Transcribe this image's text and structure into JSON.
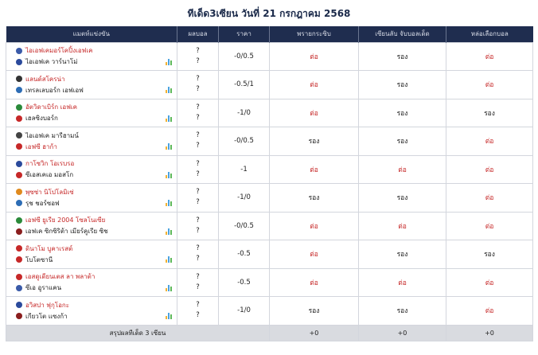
{
  "page_title": "ทีเด็ด3เซียน วันที่ 21 กรกฎาคม 2568",
  "columns": [
    "แมตท์แข่งขัน",
    "ผลบอล",
    "ราคา",
    "พรายกระซิบ",
    "เซียนลับ จับบอลเด็ด",
    "หล่อเลือกบอล"
  ],
  "colors": {
    "header_bg": "#1f2d4f",
    "pick_red": "#c62828",
    "summary_bg": "#d9dbe0"
  },
  "matches": [
    {
      "home": "ไอเอฟเคมอร์โคปิ้งเอฟเค",
      "away": "ไอเอฟเค วาร์นาโม่",
      "home_fav": true,
      "score_home": "?",
      "score_away": "?",
      "price": "-0/0.5",
      "p1": "ต่อ",
      "p2": "รอง",
      "p3": "ต่อ",
      "home_logo": "#3a5aa8",
      "away_logo": "#2b4a9c"
    },
    {
      "home": "แลนด์สโครน่า",
      "away": "เทรลเลบอร์ก เอฟเอฟ",
      "home_fav": true,
      "score_home": "?",
      "score_away": "?",
      "price": "-0.5/1",
      "p1": "ต่อ",
      "p2": "รอง",
      "p3": "ต่อ",
      "home_logo": "#333333",
      "away_logo": "#2d6db5"
    },
    {
      "home": "อัตวิดาเบิร์ก เอฟเค",
      "away": "เฮลซิงบอร์ก",
      "home_fav": true,
      "score_home": "?",
      "score_away": "?",
      "price": "-1/0",
      "p1": "ต่อ",
      "p2": "รอง",
      "p3": "รอง",
      "home_logo": "#2a8a3a",
      "away_logo": "#c62828"
    },
    {
      "home": "ไอเอฟเค มารีฮามน์",
      "away": "เอฟซี ฮาก้า",
      "home_fav": false,
      "score_home": "?",
      "score_away": "?",
      "price": "-0/0.5",
      "p1": "รอง",
      "p2": "รอง",
      "p3": "ต่อ",
      "home_logo": "#444444",
      "away_logo": "#c62828"
    },
    {
      "home": "กาโซวิก โอเรบรอ",
      "away": "ซีเอสเคเอ มอสโก",
      "home_fav": true,
      "score_home": "?",
      "score_away": "?",
      "price": "-1",
      "p1": "ต่อ",
      "p2": "ต่อ",
      "p3": "ต่อ",
      "home_logo": "#2b4a9c",
      "away_logo": "#c62828"
    },
    {
      "home": "พุซซ่า นิโปโลมิเซ่",
      "away": "รุช ชอร์ซอฟ",
      "home_fav": true,
      "score_home": "?",
      "score_away": "?",
      "price": "-1/0",
      "p1": "รอง",
      "p2": "รอง",
      "p3": "ต่อ",
      "home_logo": "#e08a1e",
      "away_logo": "#2d6db5"
    },
    {
      "home": "เอฟซี ยูเรีย 2004 โซลโนเซีย",
      "away": "เอฟเค ซิกซิริต้า เมียร์คูเรีย ซิช",
      "home_fav": true,
      "score_home": "?",
      "score_away": "?",
      "price": "-0/0.5",
      "p1": "ต่อ",
      "p2": "ต่อ",
      "p3": "ต่อ",
      "home_logo": "#2a8a3a",
      "away_logo": "#8a1e1e"
    },
    {
      "home": "ดินาโม บูคาเรสต์",
      "away": "โบโตซานี",
      "home_fav": true,
      "score_home": "?",
      "score_away": "?",
      "price": "-0.5",
      "p1": "ต่อ",
      "p2": "รอง",
      "p3": "รอง",
      "home_logo": "#c62828",
      "away_logo": "#c62828"
    },
    {
      "home": "เอสดูเดียนเตส ลา พลาต้า",
      "away": "ซีเอ อูราแคน",
      "home_fav": true,
      "score_home": "?",
      "score_away": "?",
      "price": "-0.5",
      "p1": "ต่อ",
      "p2": "ต่อ",
      "p3": "ต่อ",
      "home_logo": "#c62828",
      "away_logo": "#3a5aa8"
    },
    {
      "home": "อวิสปา ฟุกุโอกะ",
      "away": "เกียวโต แซงก้า",
      "home_fav": true,
      "score_home": "?",
      "score_away": "?",
      "price": "-1/0",
      "p1": "รอง",
      "p2": "รอง",
      "p3": "ต่อ",
      "home_logo": "#2b4a9c",
      "away_logo": "#8a1e1e"
    }
  ],
  "summary": {
    "label": "สรุปผลทีเด็ด 3 เซียน",
    "p1": "+0",
    "p2": "+0",
    "p3": "+0"
  }
}
